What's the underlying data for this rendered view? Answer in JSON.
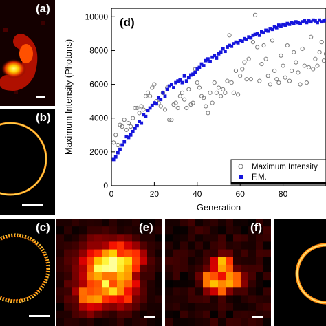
{
  "panels": {
    "a": {
      "label": "(a)"
    },
    "b": {
      "label": "(b)"
    },
    "c": {
      "label": "(c)"
    },
    "e": {
      "label": "(e)"
    },
    "f": {
      "label": "(f)"
    }
  },
  "chart_data": {
    "type": "scatter",
    "panel_label": "(d)",
    "xlabel": "Generation",
    "ylabel": "Maximum Intensity (Photons)",
    "xlim": [
      0,
      100
    ],
    "ylim": [
      0,
      10500
    ],
    "xticks": [
      0,
      20,
      40,
      60,
      80
    ],
    "yticks": [
      0,
      2000,
      4000,
      6000,
      8000,
      10000
    ],
    "grid": false,
    "legend_position": "bottom-right",
    "series": [
      {
        "name": "Maximum Intensity",
        "marker": "open-circle",
        "color": "#7a7a7a",
        "x": [
          1,
          2,
          3,
          4,
          5,
          6,
          7,
          8,
          9,
          10,
          11,
          12,
          13,
          14,
          15,
          16,
          17,
          18,
          19,
          20,
          21,
          22,
          23,
          24,
          25,
          26,
          27,
          28,
          29,
          30,
          31,
          32,
          33,
          34,
          35,
          36,
          37,
          38,
          39,
          40,
          41,
          42,
          43,
          44,
          45,
          46,
          47,
          48,
          49,
          50,
          51,
          52,
          53,
          54,
          55,
          56,
          57,
          58,
          59,
          60,
          61,
          62,
          63,
          64,
          65,
          66,
          67,
          68,
          69,
          70,
          71,
          72,
          73,
          74,
          75,
          76,
          77,
          78,
          79,
          80,
          81,
          82,
          83,
          84,
          85,
          86,
          87,
          88,
          89,
          90,
          91,
          92,
          93,
          94,
          95,
          96,
          97,
          98,
          99,
          100
        ],
        "y": [
          2550,
          3000,
          2400,
          3600,
          3500,
          3900,
          3300,
          3700,
          3500,
          4000,
          4600,
          4600,
          4300,
          4700,
          4500,
          5300,
          5500,
          5300,
          5800,
          6000,
          5000,
          4900,
          4700,
          5500,
          4500,
          5800,
          3900,
          3900,
          4800,
          4900,
          4600,
          5300,
          5500,
          5100,
          4600,
          5700,
          4800,
          4900,
          6900,
          6100,
          5800,
          5300,
          5200,
          4700,
          4300,
          5500,
          4900,
          6100,
          5500,
          5800,
          5300,
          5700,
          5500,
          6200,
          8900,
          6100,
          5500,
          6800,
          5400,
          6500,
          6900,
          7300,
          6300,
          7500,
          6300,
          8500,
          10100,
          8200,
          6200,
          7200,
          8300,
          7500,
          6500,
          6000,
          8600,
          6800,
          6300,
          6100,
          7700,
          7100,
          6400,
          8300,
          6200,
          6800,
          7900,
          7300,
          6700,
          6000,
          8100,
          7100,
          6100,
          7000,
          8800,
          6900,
          7500,
          7100,
          7900,
          8500,
          7400,
          7800
        ]
      },
      {
        "name": "F.M.",
        "marker": "filled-square",
        "color": "#1515dc",
        "x": [
          1,
          2,
          3,
          4,
          5,
          6,
          7,
          8,
          9,
          10,
          11,
          12,
          13,
          14,
          15,
          16,
          17,
          18,
          19,
          20,
          21,
          22,
          23,
          24,
          25,
          26,
          27,
          28,
          29,
          30,
          31,
          32,
          33,
          34,
          35,
          36,
          37,
          38,
          39,
          40,
          41,
          42,
          43,
          44,
          45,
          46,
          47,
          48,
          49,
          50,
          51,
          52,
          53,
          54,
          55,
          56,
          57,
          58,
          59,
          60,
          61,
          62,
          63,
          64,
          65,
          66,
          67,
          68,
          69,
          70,
          71,
          72,
          73,
          74,
          75,
          76,
          77,
          78,
          79,
          80,
          81,
          82,
          83,
          84,
          85,
          86,
          87,
          88,
          89,
          90,
          91,
          92,
          93,
          94,
          95,
          96,
          97,
          98,
          99,
          100
        ],
        "y": [
          1550,
          1700,
          1950,
          2150,
          2400,
          2600,
          2900,
          2850,
          3000,
          3200,
          3400,
          3550,
          3800,
          3700,
          4200,
          4100,
          4450,
          4600,
          4750,
          4900,
          4850,
          5200,
          5100,
          5500,
          5300,
          5700,
          5900,
          6000,
          5800,
          6100,
          6200,
          6250,
          6100,
          6500,
          6200,
          6400,
          6550,
          6600,
          6700,
          6900,
          7000,
          7200,
          7100,
          7400,
          7500,
          7350,
          7600,
          7700,
          7550,
          7800,
          7900,
          8100,
          7950,
          8200,
          8300,
          8250,
          8400,
          8500,
          8450,
          8600,
          8550,
          8700,
          8650,
          8800,
          8750,
          8900,
          8950,
          9000,
          8900,
          9100,
          9050,
          9200,
          9150,
          9300,
          9250,
          9400,
          9350,
          9500,
          9450,
          9550,
          9500,
          9600,
          9550,
          9650,
          9600,
          9700,
          9650,
          9600,
          9700,
          9750,
          9650,
          9750,
          9700,
          9800,
          9750,
          9650,
          9800,
          9700,
          9750,
          9800
        ]
      }
    ]
  }
}
